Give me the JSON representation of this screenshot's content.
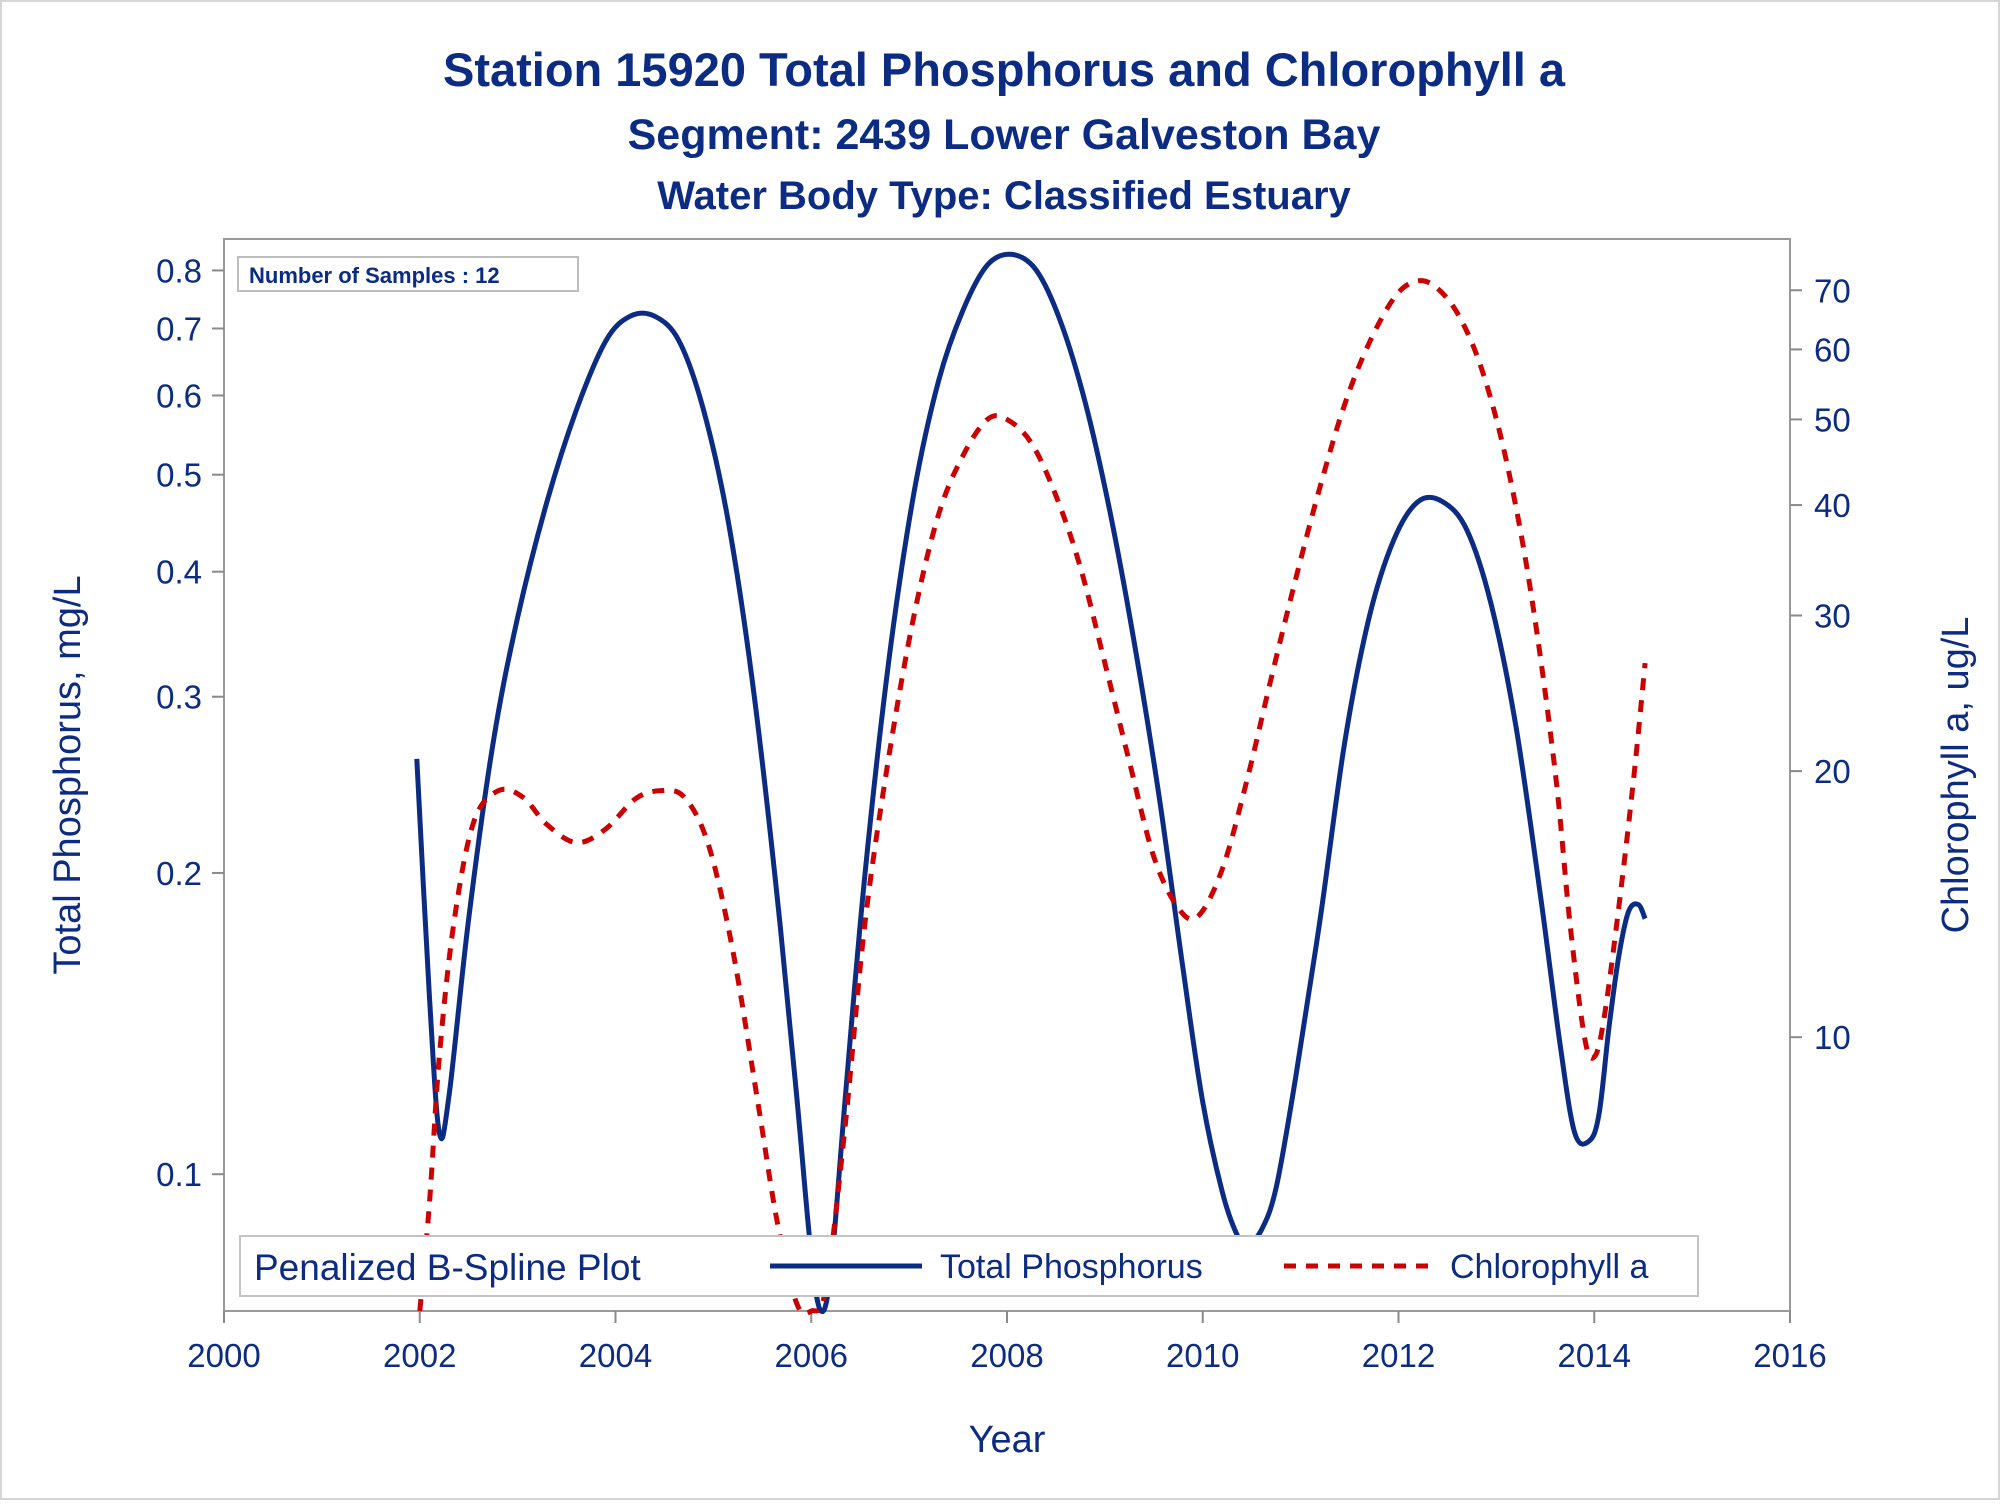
{
  "chart_data": {
    "type": "line",
    "title": "Station 15920  Total Phosphorus and Chlorophyll a",
    "subtitle": "Segment: 2439  Lower Galveston Bay",
    "subtitle2": "Water Body Type: Classified Estuary",
    "xlabel": "Year",
    "ylabel": "Total Phosphorus, mg/L",
    "y2label": "Chlorophyll a, ug/L",
    "xlim": [
      2000,
      2016
    ],
    "ylim": [
      0.073,
      0.86
    ],
    "y2lim": [
      4.9,
      80
    ],
    "yscale": "log",
    "y2scale": "log",
    "x_ticks": [
      "2000",
      "2002",
      "2004",
      "2006",
      "2008",
      "2010",
      "2012",
      "2014",
      "2016"
    ],
    "y_ticks": [
      "0.1",
      "0.2",
      "0.3",
      "0.4",
      "0.5",
      "0.6",
      "0.7",
      "0.8"
    ],
    "y2_ticks": [
      "10",
      "20",
      "30",
      "40",
      "50",
      "60",
      "70"
    ],
    "inset_label": "Number of Samples : 12",
    "legend": {
      "title": "Penalized B-Spline Plot",
      "position": "bottom",
      "entries": [
        "Total Phosphorus",
        "Chlorophyll a"
      ]
    },
    "grid": false,
    "series": [
      {
        "name": "Total Phosphorus",
        "axis": "left",
        "color": "#0c2c84",
        "style": "solid",
        "points": [
          [
            2001.97,
            0.26
          ],
          [
            2002.1,
            0.15
          ],
          [
            2002.2,
            0.11
          ],
          [
            2002.3,
            0.12
          ],
          [
            2002.5,
            0.18
          ],
          [
            2002.75,
            0.27
          ],
          [
            2003.0,
            0.36
          ],
          [
            2003.3,
            0.47
          ],
          [
            2003.6,
            0.58
          ],
          [
            2003.9,
            0.68
          ],
          [
            2004.15,
            0.72
          ],
          [
            2004.4,
            0.72
          ],
          [
            2004.65,
            0.68
          ],
          [
            2004.9,
            0.58
          ],
          [
            2005.15,
            0.45
          ],
          [
            2005.4,
            0.31
          ],
          [
            2005.65,
            0.19
          ],
          [
            2005.85,
            0.12
          ],
          [
            2006.0,
            0.083
          ],
          [
            2006.1,
            0.073
          ],
          [
            2006.2,
            0.08
          ],
          [
            2006.35,
            0.12
          ],
          [
            2006.55,
            0.2
          ],
          [
            2006.8,
            0.33
          ],
          [
            2007.05,
            0.48
          ],
          [
            2007.3,
            0.62
          ],
          [
            2007.55,
            0.73
          ],
          [
            2007.8,
            0.81
          ],
          [
            2008.05,
            0.83
          ],
          [
            2008.3,
            0.8
          ],
          [
            2008.55,
            0.71
          ],
          [
            2008.8,
            0.59
          ],
          [
            2009.05,
            0.46
          ],
          [
            2009.3,
            0.34
          ],
          [
            2009.55,
            0.24
          ],
          [
            2009.8,
            0.16
          ],
          [
            2010.0,
            0.118
          ],
          [
            2010.2,
            0.096
          ],
          [
            2010.35,
            0.087
          ],
          [
            2010.45,
            0.085
          ],
          [
            2010.6,
            0.088
          ],
          [
            2010.75,
            0.097
          ],
          [
            2010.95,
            0.125
          ],
          [
            2011.2,
            0.18
          ],
          [
            2011.45,
            0.27
          ],
          [
            2011.7,
            0.36
          ],
          [
            2011.95,
            0.43
          ],
          [
            2012.2,
            0.47
          ],
          [
            2012.45,
            0.47
          ],
          [
            2012.7,
            0.44
          ],
          [
            2012.95,
            0.37
          ],
          [
            2013.2,
            0.28
          ],
          [
            2013.45,
            0.19
          ],
          [
            2013.65,
            0.135
          ],
          [
            2013.8,
            0.11
          ],
          [
            2013.95,
            0.108
          ],
          [
            2014.05,
            0.115
          ],
          [
            2014.15,
            0.14
          ],
          [
            2014.25,
            0.165
          ],
          [
            2014.35,
            0.183
          ],
          [
            2014.45,
            0.186
          ],
          [
            2014.52,
            0.18
          ]
        ]
      },
      {
        "name": "Chlorophyll a",
        "axis": "right",
        "color": "#cc0000",
        "style": "dashed",
        "points": [
          [
            2002.0,
            4.9
          ],
          [
            2002.1,
            6.5
          ],
          [
            2002.2,
            9.5
          ],
          [
            2002.35,
            13.5
          ],
          [
            2002.55,
            17.5
          ],
          [
            2002.8,
            19.0
          ],
          [
            2003.05,
            18.7
          ],
          [
            2003.3,
            17.4
          ],
          [
            2003.6,
            16.6
          ],
          [
            2003.9,
            17.2
          ],
          [
            2004.2,
            18.6
          ],
          [
            2004.45,
            19.0
          ],
          [
            2004.7,
            18.7
          ],
          [
            2004.95,
            16.5
          ],
          [
            2005.2,
            12.5
          ],
          [
            2005.45,
            8.5
          ],
          [
            2005.65,
            6.2
          ],
          [
            2005.85,
            5.0
          ],
          [
            2006.0,
            4.9
          ],
          [
            2006.15,
            5.2
          ],
          [
            2006.35,
            8.0
          ],
          [
            2006.55,
            13.5
          ],
          [
            2006.8,
            21.0
          ],
          [
            2007.05,
            30.0
          ],
          [
            2007.3,
            39.0
          ],
          [
            2007.55,
            45.5
          ],
          [
            2007.8,
            50.0
          ],
          [
            2008.0,
            50.0
          ],
          [
            2008.25,
            47.0
          ],
          [
            2008.5,
            41.0
          ],
          [
            2008.75,
            34.0
          ],
          [
            2009.0,
            26.5
          ],
          [
            2009.25,
            20.5
          ],
          [
            2009.5,
            16.0
          ],
          [
            2009.75,
            14.0
          ],
          [
            2009.95,
            13.7
          ],
          [
            2010.2,
            15.5
          ],
          [
            2010.45,
            19.5
          ],
          [
            2010.7,
            25.5
          ],
          [
            2010.95,
            33.0
          ],
          [
            2011.2,
            42.0
          ],
          [
            2011.45,
            52.0
          ],
          [
            2011.7,
            61.0
          ],
          [
            2011.95,
            68.5
          ],
          [
            2012.15,
            71.5
          ],
          [
            2012.35,
            71.0
          ],
          [
            2012.6,
            66.0
          ],
          [
            2012.85,
            57.0
          ],
          [
            2013.1,
            45.0
          ],
          [
            2013.35,
            32.0
          ],
          [
            2013.6,
            20.0
          ],
          [
            2013.75,
            13.5
          ],
          [
            2013.9,
            10.0
          ],
          [
            2014.0,
            9.5
          ],
          [
            2014.1,
            10.5
          ],
          [
            2014.25,
            14.0
          ],
          [
            2014.4,
            19.5
          ],
          [
            2014.52,
            26.5
          ]
        ]
      }
    ]
  }
}
